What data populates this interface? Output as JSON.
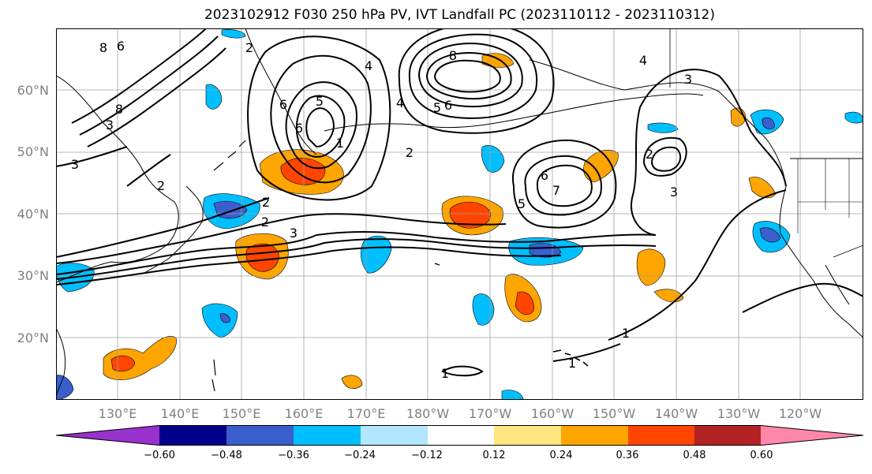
{
  "title": "2023102912 F030 250 hPa PV, IVT Landfall PC (2023110112 - 2023110312)",
  "map": {
    "lat_labels": [
      "60°N",
      "50°N",
      "40°N",
      "30°N",
      "20°N"
    ],
    "lon_labels": [
      "130°E",
      "140°E",
      "150°E",
      "160°E",
      "170°E",
      "180°W",
      "170°W",
      "160°W",
      "150°W",
      "140°W",
      "130°W",
      "120°W"
    ],
    "contour_labels": [
      "8",
      "6",
      "3",
      "8",
      "6",
      "5",
      "4",
      "2",
      "2",
      "1",
      "2",
      "2",
      "3",
      "8",
      "6",
      "5",
      "4",
      "6",
      "5",
      "7",
      "6",
      "2",
      "3",
      "4",
      "3",
      "2",
      "3",
      "1",
      "1",
      "1"
    ],
    "colors": {
      "background": "#ffffff",
      "coast": "#000000",
      "grid": "#a0a0a0",
      "contour": "#000000"
    }
  },
  "colorbar": {
    "ticks": [
      "−0.60",
      "−0.48",
      "−0.36",
      "−0.24",
      "−0.12",
      "0.12",
      "0.24",
      "0.36",
      "0.48",
      "0.60"
    ],
    "colors": [
      "#9932cc",
      "#00008b",
      "#3a5fcd",
      "#00bfff",
      "#b3e5fc",
      "#ffffff",
      "#ffe680",
      "#ffa500",
      "#ff4500",
      "#b22222",
      "#ff88aa"
    ]
  }
}
